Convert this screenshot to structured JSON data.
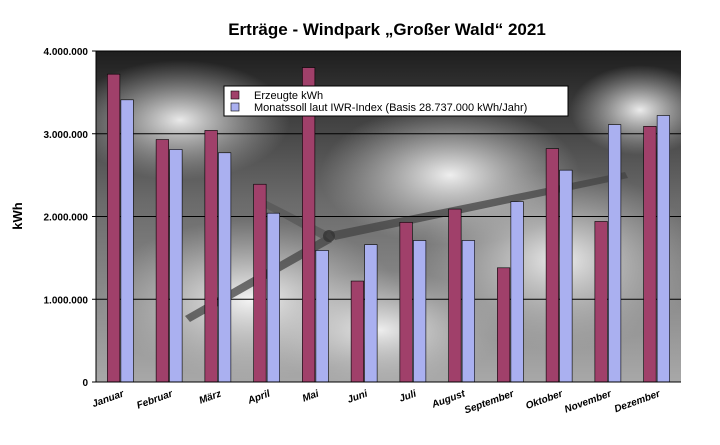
{
  "chart_data": {
    "type": "bar",
    "title": "Erträge - Windpark „Großer Wald“ 2021",
    "xlabel": "",
    "ylabel": "kWh",
    "ylim": [
      0,
      4000000
    ],
    "yticks": [
      {
        "value": 0,
        "label": "0"
      },
      {
        "value": 1000000,
        "label": "1.000.000"
      },
      {
        "value": 2000000,
        "label": "2.000.000"
      },
      {
        "value": 3000000,
        "label": "3.000.000"
      },
      {
        "value": 4000000,
        "label": "4.000.000"
      }
    ],
    "grid": true,
    "legend_position": "top-center",
    "categories": [
      "Januar",
      "Februar",
      "März",
      "April",
      "Mai",
      "Juni",
      "Juli",
      "August",
      "September",
      "Oktober",
      "November",
      "Dezember"
    ],
    "series": [
      {
        "name": "Erzeugte kWh",
        "color": "#a0406a",
        "values": [
          3720000,
          2930000,
          3040000,
          2390000,
          3800000,
          1220000,
          1930000,
          2090000,
          1380000,
          2820000,
          1940000,
          3090000
        ]
      },
      {
        "name": "Monatssoll laut IWR-Index (Basis 28.737.000 kWh/Jahr)",
        "color": "#aab0f0",
        "values": [
          3410000,
          2810000,
          2770000,
          2040000,
          1590000,
          1660000,
          1710000,
          1710000,
          2180000,
          2560000,
          3110000,
          3220000
        ]
      }
    ]
  }
}
